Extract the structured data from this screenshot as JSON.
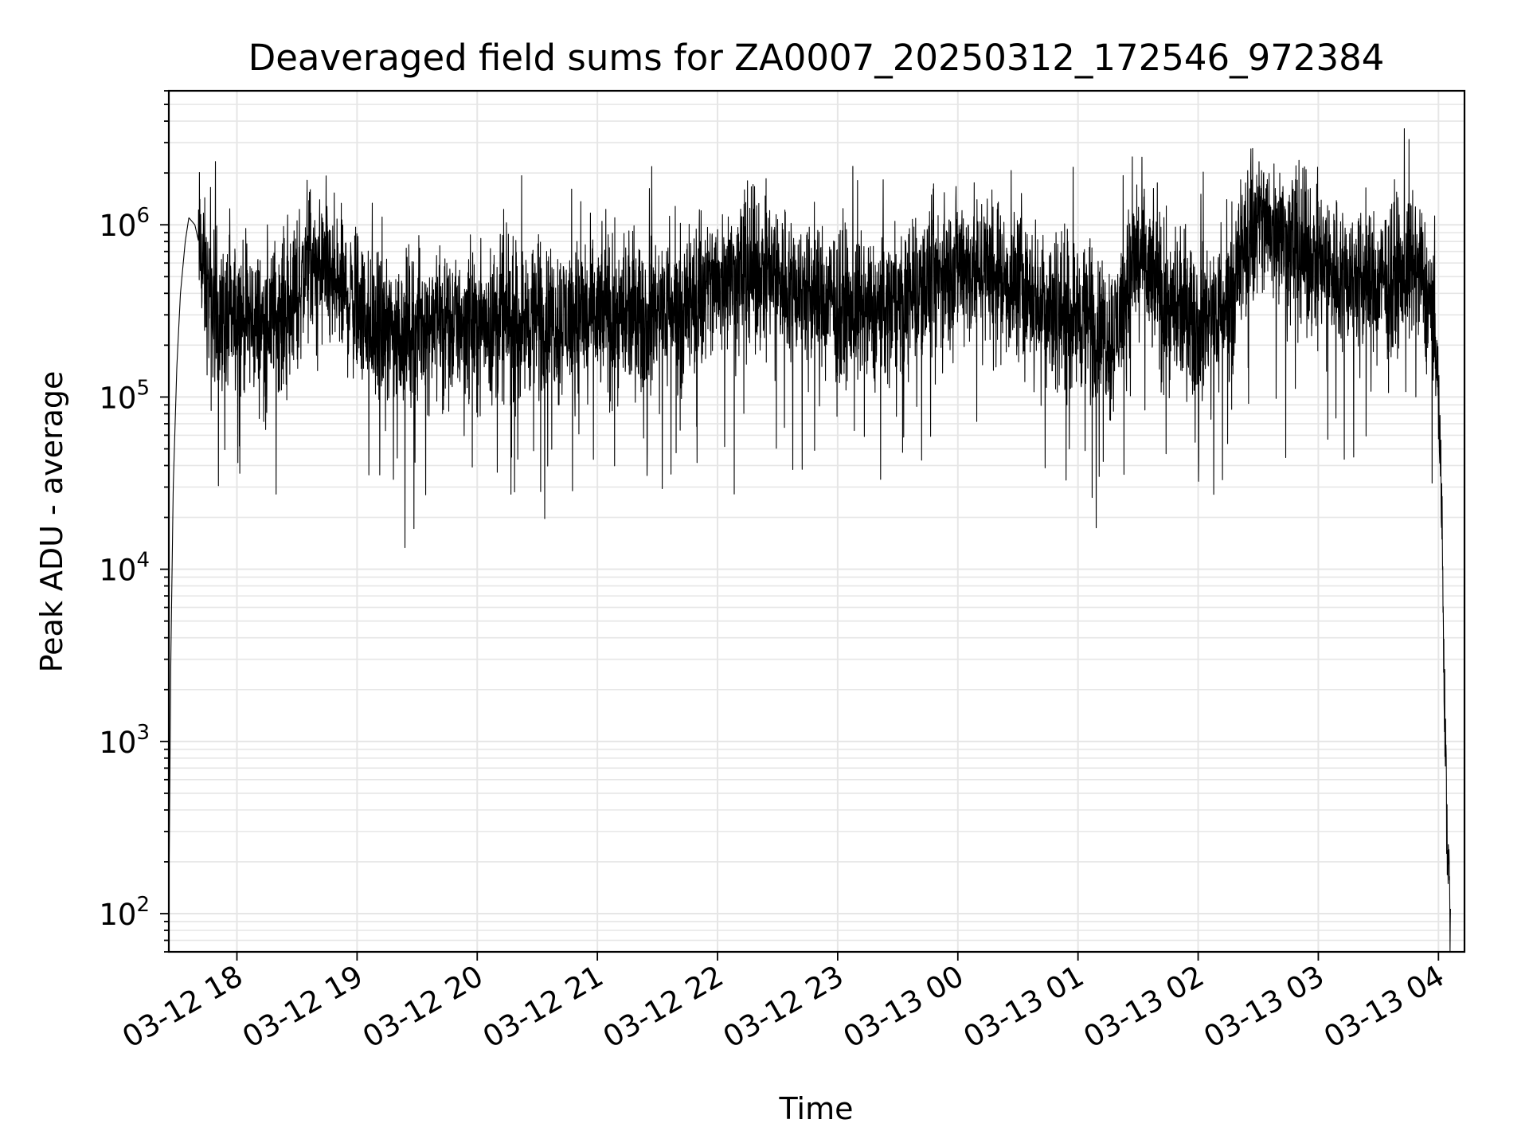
{
  "chart_data": {
    "type": "line",
    "title": "Deaveraged field sums for ZA0007_20250312_172546_972384",
    "xlabel": "Time",
    "ylabel": "Peak ADU - average",
    "yscale": "log",
    "ylim": [
      60,
      6000000
    ],
    "xlim": [
      "03-12 17:26",
      "03-13 04:13"
    ],
    "grid": true,
    "line_color": "#000000",
    "grid_color": "#e6e6e6",
    "x_ticks": [
      {
        "label": "03-12 18",
        "hour": 18
      },
      {
        "label": "03-12 19",
        "hour": 19
      },
      {
        "label": "03-12 20",
        "hour": 20
      },
      {
        "label": "03-12 21",
        "hour": 21
      },
      {
        "label": "03-12 22",
        "hour": 22
      },
      {
        "label": "03-12 23",
        "hour": 23
      },
      {
        "label": "03-13 00",
        "hour": 24
      },
      {
        "label": "03-13 01",
        "hour": 25
      },
      {
        "label": "03-13 02",
        "hour": 26
      },
      {
        "label": "03-13 03",
        "hour": 27
      },
      {
        "label": "03-13 04",
        "hour": 28
      }
    ],
    "y_ticks": [
      {
        "base": "10",
        "exp": "2",
        "value": 100
      },
      {
        "base": "10",
        "exp": "3",
        "value": 1000
      },
      {
        "base": "10",
        "exp": "4",
        "value": 10000
      },
      {
        "base": "10",
        "exp": "5",
        "value": 100000
      },
      {
        "base": "10",
        "exp": "6",
        "value": 1000000
      }
    ],
    "series": [
      {
        "x_hours": [
          17.43,
          17.45,
          17.47,
          17.5,
          17.53,
          17.57,
          17.6,
          17.65,
          17.7,
          17.75,
          17.8,
          17.85,
          17.9,
          17.95,
          18.0,
          18.1,
          18.2,
          18.3,
          18.4,
          18.5,
          18.6,
          18.7,
          18.8,
          18.9,
          19.0,
          19.1,
          19.2,
          19.3,
          19.5,
          19.75,
          20.0,
          20.25,
          20.5,
          20.75,
          21.0,
          21.25,
          21.5,
          21.75,
          22.0,
          22.25,
          22.5,
          22.75,
          23.0,
          23.25,
          23.5,
          23.75,
          24.0,
          24.25,
          24.5,
          24.75,
          25.0,
          25.15,
          25.3,
          25.4,
          25.5,
          25.6,
          25.75,
          26.0,
          26.2,
          26.3,
          26.4,
          26.5,
          26.6,
          26.75,
          27.0,
          27.25,
          27.5,
          27.75,
          27.85,
          27.9,
          27.95,
          28.0,
          28.03,
          28.05,
          28.07,
          28.09,
          28.1
        ],
        "y": [
          60,
          3000,
          30000,
          150000,
          400000,
          800000,
          1100000,
          1000000,
          700000,
          400000,
          350000,
          300000,
          280000,
          270000,
          300000,
          280000,
          260000,
          300000,
          320000,
          400000,
          600000,
          500000,
          450000,
          400000,
          350000,
          270000,
          230000,
          240000,
          260000,
          270000,
          280000,
          270000,
          280000,
          290000,
          300000,
          290000,
          310000,
          350000,
          450000,
          550000,
          500000,
          400000,
          350000,
          300000,
          350000,
          450000,
          600000,
          550000,
          450000,
          350000,
          300000,
          250000,
          230000,
          400000,
          700000,
          500000,
          330000,
          280000,
          300000,
          500000,
          800000,
          1000000,
          950000,
          800000,
          600000,
          500000,
          450000,
          550000,
          500000,
          400000,
          300000,
          100000,
          20000,
          2000,
          300,
          150,
          60
        ]
      }
    ]
  }
}
